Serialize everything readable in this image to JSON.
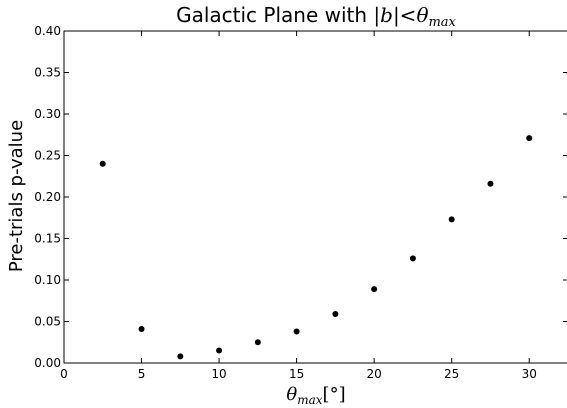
{
  "chart_data": {
    "type": "scatter",
    "title": {
      "prefix": "Galactic Plane with ",
      "math": "|b|<θ",
      "math_sub": "max"
    },
    "xlabel": {
      "symbol": "θ",
      "sub": "max",
      "unit": "[°]"
    },
    "ylabel": "Pre-trials p-value",
    "xlim": [
      0,
      32.5
    ],
    "ylim": [
      0,
      0.4
    ],
    "xticks": [
      0,
      5,
      10,
      15,
      20,
      25,
      30
    ],
    "yticks": [
      0.0,
      0.05,
      0.1,
      0.15,
      0.2,
      0.25,
      0.3,
      0.35,
      0.4
    ],
    "xtick_labels": [
      "0",
      "5",
      "10",
      "15",
      "20",
      "25",
      "30"
    ],
    "ytick_labels": [
      "0.00",
      "0.05",
      "0.10",
      "0.15",
      "0.20",
      "0.25",
      "0.30",
      "0.35",
      "0.40"
    ],
    "grid": false,
    "points": [
      {
        "x": 2.5,
        "y": 0.24
      },
      {
        "x": 5.0,
        "y": 0.041
      },
      {
        "x": 7.5,
        "y": 0.008
      },
      {
        "x": 10.0,
        "y": 0.015
      },
      {
        "x": 12.5,
        "y": 0.025
      },
      {
        "x": 15.0,
        "y": 0.038
      },
      {
        "x": 17.5,
        "y": 0.059
      },
      {
        "x": 20.0,
        "y": 0.089
      },
      {
        "x": 22.5,
        "y": 0.126
      },
      {
        "x": 25.0,
        "y": 0.173
      },
      {
        "x": 27.5,
        "y": 0.216
      },
      {
        "x": 30.0,
        "y": 0.271
      }
    ],
    "marker_color": "#000000"
  }
}
